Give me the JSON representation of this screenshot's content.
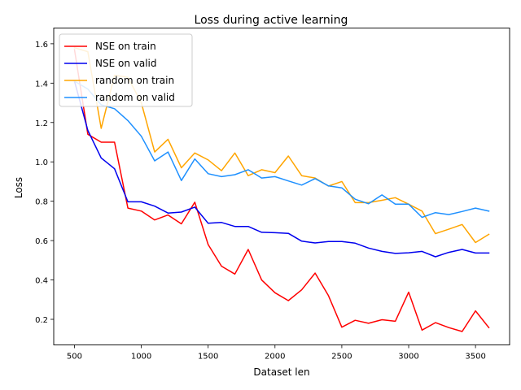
{
  "chart_data": {
    "type": "line",
    "title": "Loss during active learning",
    "xlabel": "Dataset len",
    "ylabel": "Loss",
    "xlim": [
      345,
      3755
    ],
    "ylim": [
      0.07,
      1.68
    ],
    "xticks": [
      500,
      1000,
      1500,
      2000,
      2500,
      3000,
      3500
    ],
    "yticks": [
      0.2,
      0.4,
      0.6,
      0.8,
      1.0,
      1.2,
      1.4,
      1.6
    ],
    "xtick_labels": [
      "500",
      "1000",
      "1500",
      "2000",
      "2500",
      "3000",
      "3500"
    ],
    "ytick_labels": [
      "0.2",
      "0.4",
      "0.6",
      "0.8",
      "1.0",
      "1.2",
      "1.4",
      "1.6"
    ],
    "grid": false,
    "legend_position": "top-left",
    "x": [
      500,
      600,
      700,
      800,
      900,
      1000,
      1100,
      1200,
      1300,
      1400,
      1500,
      1600,
      1700,
      1800,
      1900,
      2000,
      2100,
      2200,
      2300,
      2400,
      2500,
      2600,
      2700,
      2800,
      2900,
      3000,
      3100,
      3200,
      3300,
      3400,
      3500,
      3600
    ],
    "series": [
      {
        "name": "NSE on train",
        "color": "#ff0000",
        "values": [
          1.57,
          1.14,
          1.1,
          1.1,
          0.765,
          0.75,
          0.705,
          0.73,
          0.685,
          0.795,
          0.58,
          0.47,
          0.43,
          0.555,
          0.4,
          0.335,
          0.295,
          0.35,
          0.435,
          0.32,
          0.16,
          0.195,
          0.18,
          0.198,
          0.19,
          0.338,
          0.145,
          0.183,
          0.158,
          0.138,
          0.243,
          0.158
        ]
      },
      {
        "name": "NSE on valid",
        "color": "#0000ee",
        "values": [
          1.41,
          1.16,
          1.02,
          0.965,
          0.797,
          0.797,
          0.775,
          0.74,
          0.745,
          0.77,
          0.688,
          0.692,
          0.672,
          0.672,
          0.642,
          0.64,
          0.637,
          0.597,
          0.588,
          0.595,
          0.595,
          0.587,
          0.562,
          0.545,
          0.535,
          0.538,
          0.545,
          0.518,
          0.54,
          0.555,
          0.537,
          0.537
        ]
      },
      {
        "name": "random on train",
        "color": "#ffa500",
        "values": [
          1.58,
          1.56,
          1.17,
          1.44,
          1.43,
          1.3,
          1.05,
          1.115,
          0.97,
          1.045,
          1.01,
          0.955,
          1.045,
          0.93,
          0.96,
          0.945,
          1.03,
          0.93,
          0.918,
          0.877,
          0.9,
          0.793,
          0.793,
          0.805,
          0.818,
          0.785,
          0.75,
          0.635,
          0.658,
          0.682,
          0.59,
          0.632
        ]
      },
      {
        "name": "random on valid",
        "color": "#1e90ff",
        "values": [
          1.41,
          1.37,
          1.29,
          1.27,
          1.21,
          1.13,
          1.005,
          1.05,
          0.905,
          1.015,
          0.94,
          0.925,
          0.935,
          0.96,
          0.918,
          0.925,
          0.903,
          0.882,
          0.915,
          0.878,
          0.868,
          0.81,
          0.787,
          0.832,
          0.785,
          0.785,
          0.718,
          0.742,
          0.732,
          0.748,
          0.765,
          0.75
        ]
      }
    ]
  }
}
